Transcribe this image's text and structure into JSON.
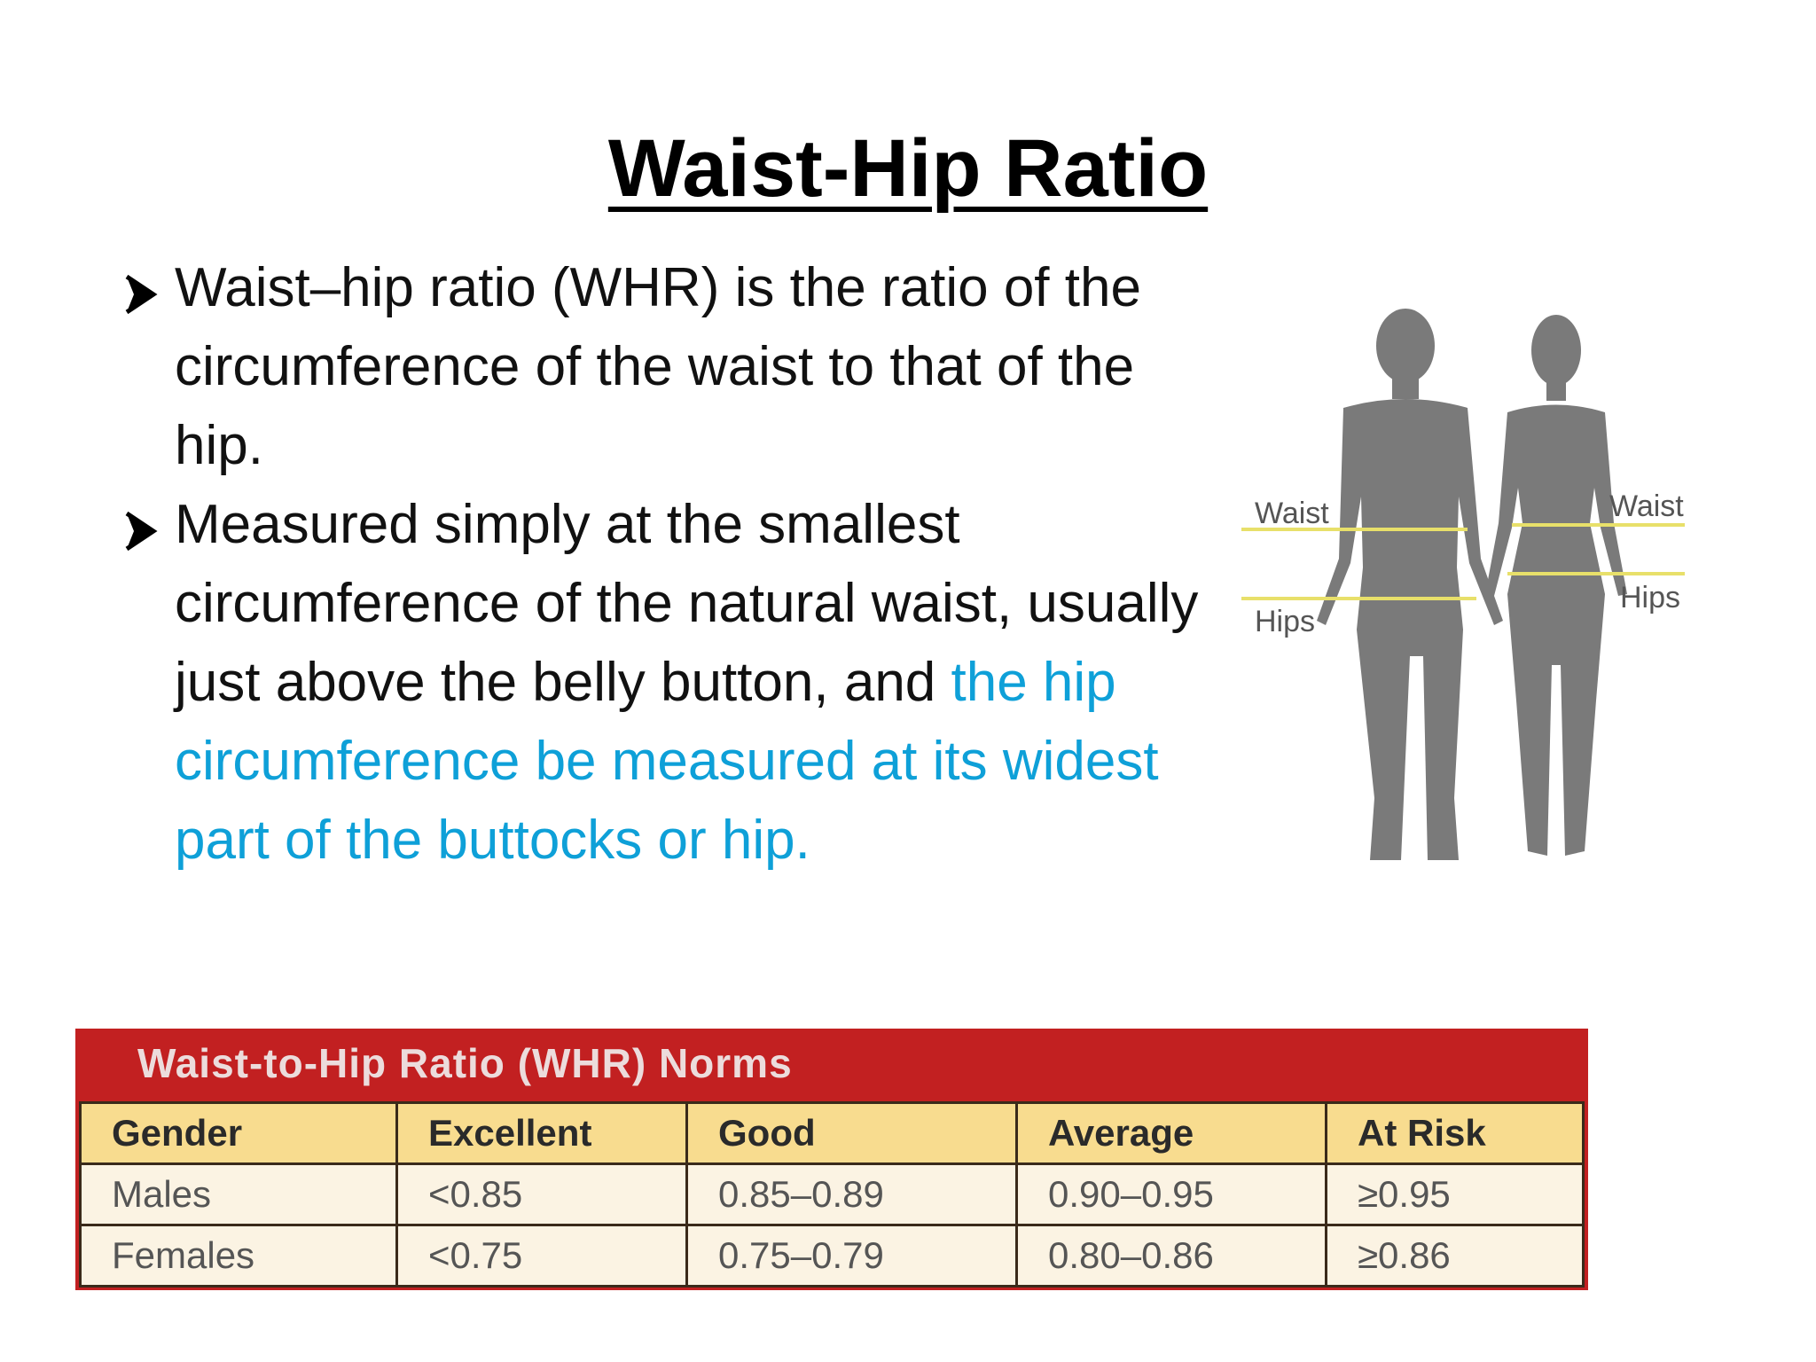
{
  "title": "Waist-Hip Ratio",
  "bullets": [
    {
      "text": "Waist–hip ratio (WHR) is the ratio of the circumference of the waist to that of the hip."
    },
    {
      "text_plain": "Measured simply at the smallest circumference of the natural waist, usually just above the belly button, and ",
      "text_highlight": "the hip circumference be measured at its widest part of the buttocks or hip."
    }
  ],
  "figure": {
    "male_waist_label": "Waist",
    "male_hips_label": "Hips",
    "female_waist_label": "Waist",
    "female_hips_label": "Hips",
    "silhouette_color": "#7a7a7a",
    "line_color": "#e8e06a"
  },
  "table": {
    "title": "Waist-to-Hip Ratio (WHR) Norms",
    "headers": [
      "Gender",
      "Excellent",
      "Good",
      "Average",
      "At Risk"
    ],
    "rows": [
      [
        "Males",
        "<0.85",
        "0.85–0.89",
        "0.90–0.95",
        "≥0.95"
      ],
      [
        "Females",
        "<0.75",
        "0.75–0.79",
        "0.80–0.86",
        "≥0.86"
      ]
    ],
    "header_color": "#c22021",
    "col_header_bg": "#f8dc8f",
    "cell_bg": "#fbf3e3"
  },
  "colors": {
    "highlight": "#0ea0d8"
  }
}
